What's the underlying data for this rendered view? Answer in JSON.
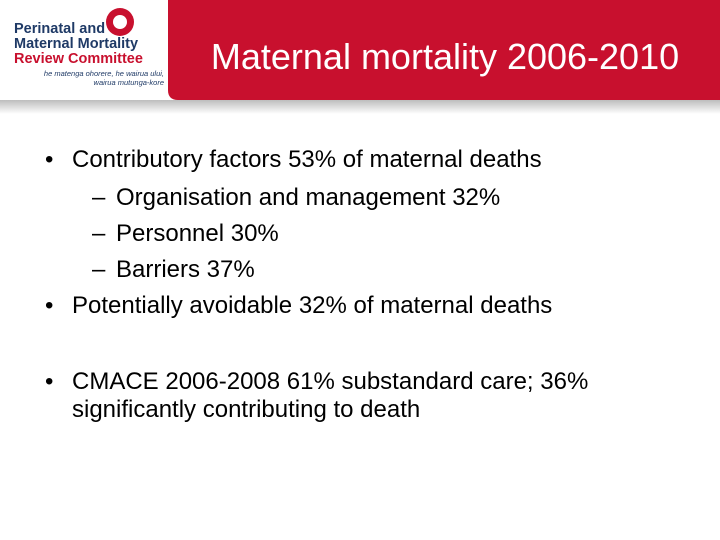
{
  "header": {
    "title": "Maternal mortality 2006-2010",
    "logo": {
      "lines": [
        "Perinatal and",
        "Maternal Mortality",
        "Review Committee"
      ],
      "motto": [
        "he matenga ohorere, he wairua ului,",
        "wairua mutunga-kore"
      ]
    }
  },
  "bullets": [
    {
      "text": "Contributory factors 53% of maternal deaths",
      "sub": [
        "Organisation and management 32%",
        "Personnel 30%",
        "Barriers 37%"
      ]
    },
    {
      "text": "Potentially avoidable 32% of maternal deaths"
    },
    {
      "text": "CMACE 2006-2008 61% substandard care; 36% significantly contributing to death"
    }
  ]
}
